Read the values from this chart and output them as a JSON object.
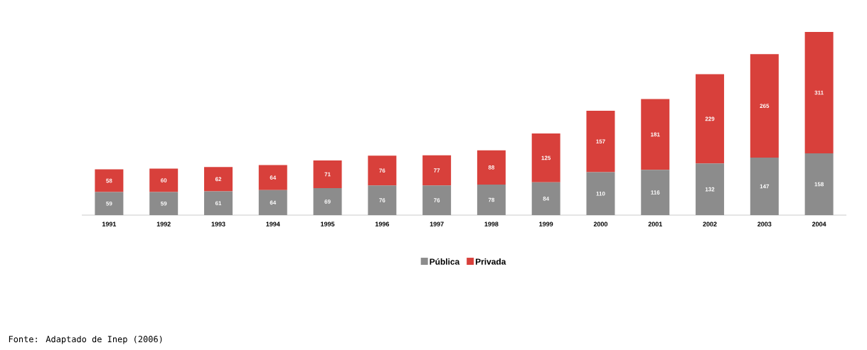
{
  "chart_data": {
    "type": "bar",
    "stacked": true,
    "categories": [
      "1991",
      "1992",
      "1993",
      "1994",
      "1995",
      "1996",
      "1997",
      "1998",
      "1999",
      "2000",
      "2001",
      "2002",
      "2003",
      "2004"
    ],
    "series": [
      {
        "name": "Pública",
        "color": "#8c8c8c",
        "values": [
          59,
          59,
          61,
          64,
          69,
          76,
          76,
          78,
          84,
          110,
          116,
          132,
          147,
          158
        ],
        "value_labels": [
          "59",
          "59",
          "61",
          "64",
          "69",
          "76",
          "76",
          "78",
          "84",
          "110",
          "116",
          "132",
          "147",
          "158"
        ]
      },
      {
        "name": "Privada",
        "color": "#d8403b",
        "values": [
          58,
          60,
          62,
          64,
          71,
          76,
          77,
          88,
          125,
          157,
          181,
          229,
          265,
          311
        ],
        "value_labels": [
          "58",
          "60",
          "62",
          "64",
          "71",
          "76",
          "77",
          "88",
          "125",
          "157",
          "181",
          "229",
          "265",
          "311"
        ]
      }
    ],
    "legend": "bottom",
    "annotations": [
      "Fonte: Adaptado de Inep (2006)"
    ]
  }
}
